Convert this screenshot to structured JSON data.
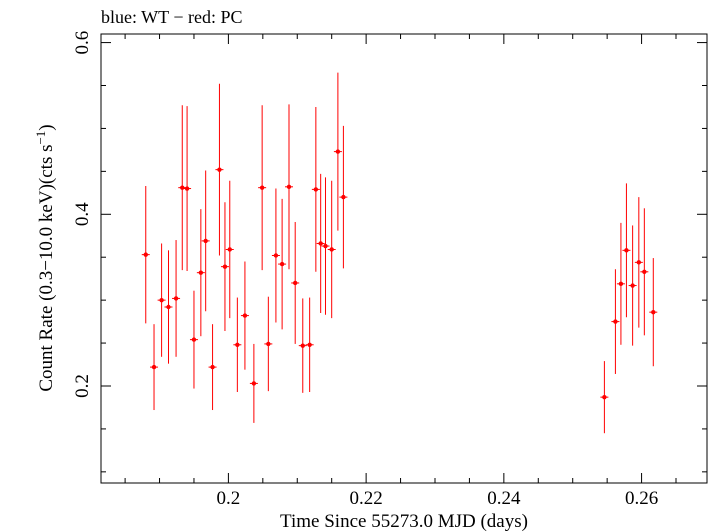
{
  "chart_data": {
    "type": "scatter",
    "title": "blue: WT − red: PC",
    "xlabel": "Time Since 55273.0 MJD (days)",
    "ylabel_main": "Count Rate (0.3−10.0 keV)(cts s",
    "ylabel_sup": "−1",
    "ylabel_end": ")",
    "xlim": [
      0.1815,
      0.2695
    ],
    "ylim": [
      0.087,
      0.61
    ],
    "x_ticks": [
      0.2,
      0.22,
      0.24,
      0.26
    ],
    "x_tick_labels": [
      "0.2",
      "0.22",
      "0.24",
      "0.26"
    ],
    "y_ticks": [
      0.2,
      0.4,
      0.6
    ],
    "y_tick_labels": [
      "0.2",
      "0.4",
      "0.6"
    ],
    "series": [
      {
        "color": "#ff0000",
        "points": [
          {
            "x": 0.188,
            "y": 0.353,
            "err": 0.08
          },
          {
            "x": 0.1892,
            "y": 0.222,
            "err": 0.05
          },
          {
            "x": 0.1903,
            "y": 0.3,
            "err": 0.066
          },
          {
            "x": 0.1913,
            "y": 0.292,
            "err": 0.066
          },
          {
            "x": 0.1924,
            "y": 0.302,
            "err": 0.068
          },
          {
            "x": 0.1933,
            "y": 0.431,
            "err": 0.096
          },
          {
            "x": 0.194,
            "y": 0.43,
            "err": 0.096
          },
          {
            "x": 0.195,
            "y": 0.254,
            "err": 0.057
          },
          {
            "x": 0.196,
            "y": 0.332,
            "err": 0.074
          },
          {
            "x": 0.1967,
            "y": 0.369,
            "err": 0.082
          },
          {
            "x": 0.1977,
            "y": 0.222,
            "err": 0.05
          },
          {
            "x": 0.1987,
            "y": 0.452,
            "err": 0.1
          },
          {
            "x": 0.1995,
            "y": 0.339,
            "err": 0.075
          },
          {
            "x": 0.2002,
            "y": 0.359,
            "err": 0.08
          },
          {
            "x": 0.2013,
            "y": 0.248,
            "err": 0.055
          },
          {
            "x": 0.2024,
            "y": 0.282,
            "err": 0.063
          },
          {
            "x": 0.2037,
            "y": 0.203,
            "err": 0.046
          },
          {
            "x": 0.2049,
            "y": 0.431,
            "err": 0.096
          },
          {
            "x": 0.2058,
            "y": 0.249,
            "err": 0.055
          },
          {
            "x": 0.2069,
            "y": 0.352,
            "err": 0.078
          },
          {
            "x": 0.2078,
            "y": 0.342,
            "err": 0.076
          },
          {
            "x": 0.2088,
            "y": 0.432,
            "err": 0.096
          },
          {
            "x": 0.2097,
            "y": 0.32,
            "err": 0.071
          },
          {
            "x": 0.2108,
            "y": 0.247,
            "err": 0.055
          },
          {
            "x": 0.2118,
            "y": 0.248,
            "err": 0.055
          },
          {
            "x": 0.2127,
            "y": 0.429,
            "err": 0.096
          },
          {
            "x": 0.2134,
            "y": 0.366,
            "err": 0.081
          },
          {
            "x": 0.2141,
            "y": 0.363,
            "err": 0.08
          },
          {
            "x": 0.215,
            "y": 0.359,
            "err": 0.08
          },
          {
            "x": 0.2159,
            "y": 0.473,
            "err": 0.092
          },
          {
            "x": 0.2167,
            "y": 0.42,
            "err": 0.083
          },
          {
            "x": 0.2546,
            "y": 0.187,
            "err": 0.042
          },
          {
            "x": 0.2562,
            "y": 0.275,
            "err": 0.061
          },
          {
            "x": 0.257,
            "y": 0.319,
            "err": 0.071
          },
          {
            "x": 0.2578,
            "y": 0.358,
            "err": 0.078
          },
          {
            "x": 0.2587,
            "y": 0.317,
            "err": 0.07
          },
          {
            "x": 0.2596,
            "y": 0.344,
            "err": 0.076
          },
          {
            "x": 0.2604,
            "y": 0.333,
            "err": 0.074
          },
          {
            "x": 0.2617,
            "y": 0.286,
            "err": 0.063
          }
        ]
      }
    ]
  }
}
